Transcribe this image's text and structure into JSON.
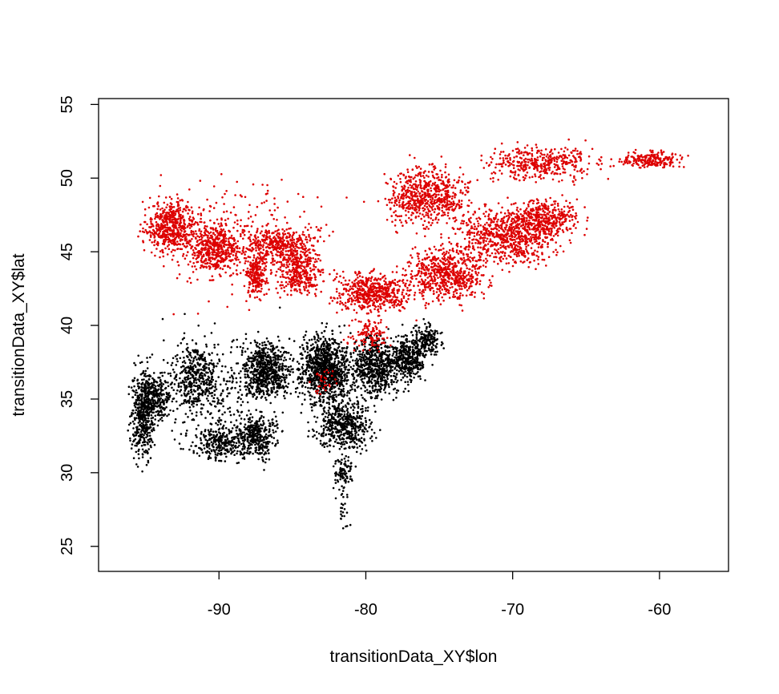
{
  "chart_data": {
    "type": "scatter",
    "title": "",
    "xlabel": "transitionData_XY$lon",
    "ylabel": "transitionData_XY$lat",
    "xlim": [
      -98.2,
      -55.3
    ],
    "ylim": [
      23.3,
      55.4
    ],
    "xticks": [
      -90,
      -80,
      -70,
      -60
    ],
    "yticks": [
      25,
      30,
      35,
      40,
      45,
      50,
      55
    ],
    "xtick_labels": [
      "-90",
      "-80",
      "-70",
      "-60"
    ],
    "ytick_labels": [
      "25",
      "30",
      "35",
      "40",
      "45",
      "50",
      "55"
    ],
    "grid": false,
    "legend": "none",
    "point_size_note": "small filled dots",
    "series": [
      {
        "color": "#000000",
        "regions": [
          {
            "lon": [
              -96.2,
              -94.2
            ],
            "lat": [
              30.2,
              38.0
            ],
            "n": 450
          },
          {
            "lon": [
              -95.5,
              -93.0
            ],
            "lat": [
              33.0,
              37.0
            ],
            "n": 250
          },
          {
            "lon": [
              -93.5,
              -89.5
            ],
            "lat": [
              33.5,
              39.5
            ],
            "n": 350
          },
          {
            "lon": [
              -92.0,
              -88.0
            ],
            "lat": [
              30.5,
              33.5
            ],
            "n": 250
          },
          {
            "lon": [
              -89.5,
              -85.5
            ],
            "lat": [
              30.5,
              34.5
            ],
            "n": 350
          },
          {
            "lon": [
              -89.0,
              -84.5
            ],
            "lat": [
              34.5,
              39.5
            ],
            "n": 650
          },
          {
            "lon": [
              -85.0,
              -80.5
            ],
            "lat": [
              34.0,
              40.2
            ],
            "n": 950
          },
          {
            "lon": [
              -84.0,
              -79.0
            ],
            "lat": [
              31.0,
              35.5
            ],
            "n": 500
          },
          {
            "lon": [
              -81.5,
              -77.0
            ],
            "lat": [
              34.5,
              40.0
            ],
            "n": 650
          },
          {
            "lon": [
              -78.5,
              -75.5
            ],
            "lat": [
              35.5,
              40.0
            ],
            "n": 350
          },
          {
            "lon": [
              -77.0,
              -74.5
            ],
            "lat": [
              37.5,
              40.5
            ],
            "n": 160
          },
          {
            "lon": [
              -82.5,
              -80.5
            ],
            "lat": [
              28.5,
              31.5
            ],
            "n": 90
          },
          {
            "lon": [
              -82.0,
              -81.0
            ],
            "lat": [
              26.0,
              29.0
            ],
            "n": 25
          },
          {
            "lon": [
              -97.0,
              -83.0
            ],
            "lat": [
              30.0,
              41.0
            ],
            "n": 350
          }
        ]
      },
      {
        "color": "#dd0000",
        "regions": [
          {
            "lon": [
              -95.5,
              -91.0
            ],
            "lat": [
              44.5,
              49.0
            ],
            "n": 500
          },
          {
            "lon": [
              -92.5,
              -88.0
            ],
            "lat": [
              43.0,
              47.5
            ],
            "n": 450
          },
          {
            "lon": [
              -89.0,
              -83.0
            ],
            "lat": [
              44.0,
              47.0
            ],
            "n": 350
          },
          {
            "lon": [
              -88.5,
              -86.5
            ],
            "lat": [
              41.5,
              45.5
            ],
            "n": 200
          },
          {
            "lon": [
              -86.5,
              -82.5
            ],
            "lat": [
              41.5,
              46.0
            ],
            "n": 350
          },
          {
            "lon": [
              -83.0,
              -76.0
            ],
            "lat": [
              40.5,
              44.0
            ],
            "n": 550
          },
          {
            "lon": [
              -78.0,
              -71.0
            ],
            "lat": [
              41.0,
              46.0
            ],
            "n": 600
          },
          {
            "lon": [
              -75.0,
              -66.0
            ],
            "lat": [
              43.5,
              48.5
            ],
            "n": 700
          },
          {
            "lon": [
              -71.0,
              -64.5
            ],
            "lat": [
              45.5,
              49.0
            ],
            "n": 400
          },
          {
            "lon": [
              -79.5,
              -72.0
            ],
            "lat": [
              46.0,
              51.5
            ],
            "n": 650
          },
          {
            "lon": [
              -73.0,
              -63.0
            ],
            "lat": [
              49.5,
              52.5
            ],
            "n": 400
          },
          {
            "lon": [
              -63.5,
              -57.5
            ],
            "lat": [
              50.5,
              52.0
            ],
            "n": 220
          },
          {
            "lon": [
              -81.5,
              -78.0
            ],
            "lat": [
              38.0,
              41.0
            ],
            "n": 120
          },
          {
            "lon": [
              -84.0,
              -81.5
            ],
            "lat": [
              35.0,
              37.5
            ],
            "n": 30
          },
          {
            "lon": [
              -97.0,
              -80.0
            ],
            "lat": [
              40.5,
              51.0
            ],
            "n": 300
          }
        ]
      }
    ]
  }
}
